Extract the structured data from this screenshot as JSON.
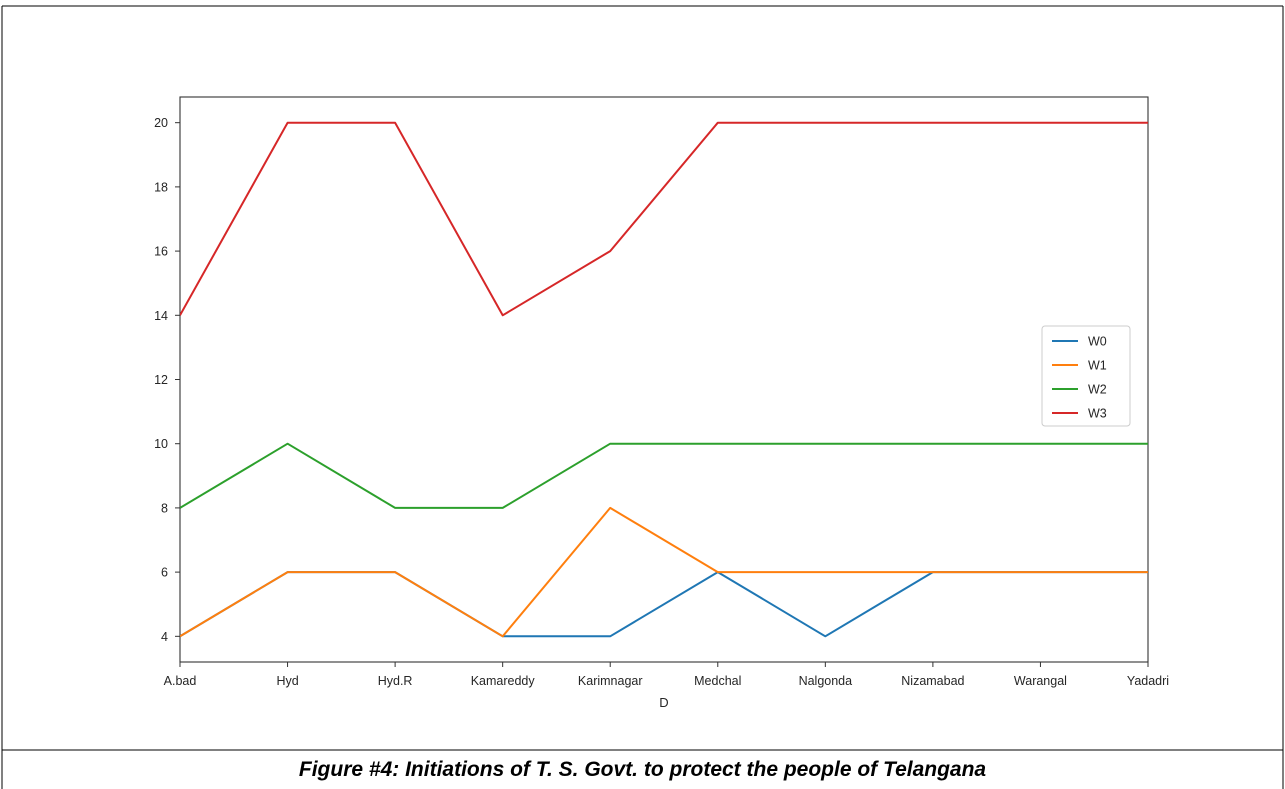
{
  "caption": "Figure #4: Initiations of T. S. Govt. to protect the people of Telangana",
  "chart_data": {
    "type": "line",
    "title": "",
    "xlabel": "D",
    "ylabel": "",
    "categories": [
      "A.bad",
      "Hyd",
      "Hyd.R",
      "Kamareddy",
      "Karimnagar",
      "Medchal",
      "Nalgonda",
      "Nizamabad",
      "Warangal",
      "Yadadri"
    ],
    "ylim": [
      3.2,
      20.8
    ],
    "yticks": [
      4,
      6,
      8,
      10,
      12,
      14,
      16,
      18,
      20
    ],
    "grid": false,
    "legend_position": "center-right",
    "series": [
      {
        "name": "W0",
        "color": "#1f77b4",
        "values": [
          4,
          6,
          6,
          4,
          4,
          6,
          4,
          6,
          6,
          6
        ]
      },
      {
        "name": "W1",
        "color": "#ff7f0e",
        "values": [
          4,
          6,
          6,
          4,
          8,
          6,
          6,
          6,
          6,
          6
        ]
      },
      {
        "name": "W2",
        "color": "#2ca02c",
        "values": [
          8,
          10,
          8,
          8,
          10,
          10,
          10,
          10,
          10,
          10
        ]
      },
      {
        "name": "W3",
        "color": "#d62728",
        "values": [
          14,
          20,
          20,
          14,
          16,
          20,
          20,
          20,
          20,
          20
        ]
      }
    ]
  }
}
